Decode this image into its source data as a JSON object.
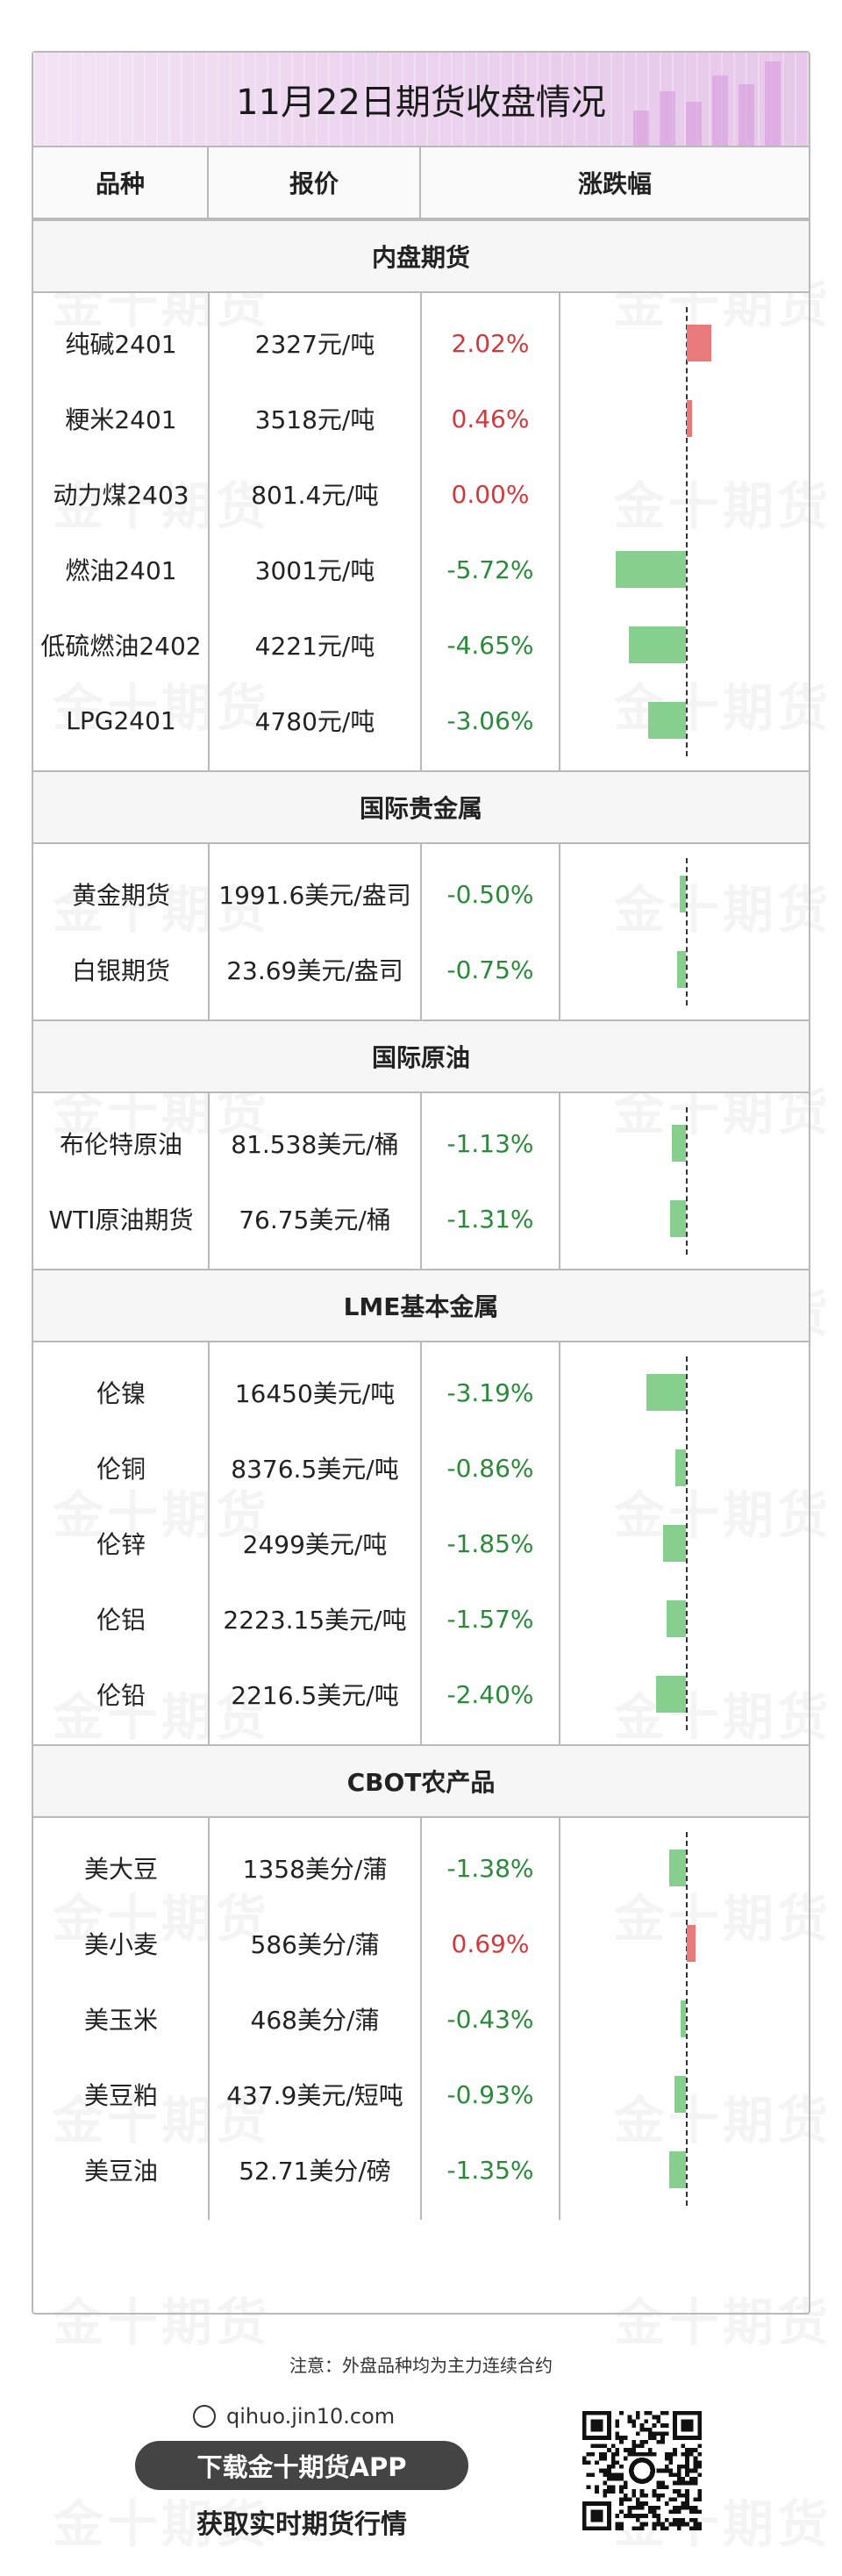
{
  "title": "11月22日期货收盘情况",
  "watermark": "金十期货",
  "header": {
    "col_name": "品种",
    "col_price": "报价",
    "col_change": "涨跌幅"
  },
  "sections": [
    {
      "title": "内盘期货",
      "rows": [
        {
          "name": "纯碱2401",
          "price": "2327元/吨",
          "change": "2.02%",
          "value": 2.02
        },
        {
          "name": "粳米2401",
          "price": "3518元/吨",
          "change": "0.46%",
          "value": 0.46
        },
        {
          "name": "动力煤2403",
          "price": "801.4元/吨",
          "change": "0.00%",
          "value": 0.0
        },
        {
          "name": "燃油2401",
          "price": "3001元/吨",
          "change": "-5.72%",
          "value": -5.72
        },
        {
          "name": "低硫燃油2402",
          "price": "4221元/吨",
          "change": "-4.65%",
          "value": -4.65
        },
        {
          "name": "LPG2401",
          "price": "4780元/吨",
          "change": "-3.06%",
          "value": -3.06
        }
      ]
    },
    {
      "title": "国际贵金属",
      "rows": [
        {
          "name": "黄金期货",
          "price": "1991.6美元/盎司",
          "change": "-0.50%",
          "value": -0.5
        },
        {
          "name": "白银期货",
          "price": "23.69美元/盎司",
          "change": "-0.75%",
          "value": -0.75
        }
      ]
    },
    {
      "title": "国际原油",
      "rows": [
        {
          "name": "布伦特原油",
          "price": "81.538美元/桶",
          "change": "-1.13%",
          "value": -1.13
        },
        {
          "name": "WTI原油期货",
          "price": "76.75美元/桶",
          "change": "-1.31%",
          "value": -1.31
        }
      ]
    },
    {
      "title": "LME基本金属",
      "rows": [
        {
          "name": "伦镍",
          "price": "16450美元/吨",
          "change": "-3.19%",
          "value": -3.19
        },
        {
          "name": "伦铜",
          "price": "8376.5美元/吨",
          "change": "-0.86%",
          "value": -0.86
        },
        {
          "name": "伦锌",
          "price": "2499美元/吨",
          "change": "-1.85%",
          "value": -1.85
        },
        {
          "name": "伦铝",
          "price": "2223.15美元/吨",
          "change": "-1.57%",
          "value": -1.57
        },
        {
          "name": "伦铅",
          "price": "2216.5美元/吨",
          "change": "-2.40%",
          "value": -2.4
        }
      ]
    },
    {
      "title": "CBOT农产品",
      "rows": [
        {
          "name": "美大豆",
          "price": "1358美分/蒲",
          "change": "-1.38%",
          "value": -1.38
        },
        {
          "name": "美小麦",
          "price": "586美分/蒲",
          "change": "0.69%",
          "value": 0.69
        },
        {
          "name": "美玉米",
          "price": "468美分/蒲",
          "change": "-0.43%",
          "value": -0.43
        },
        {
          "name": "美豆粕",
          "price": "437.9美元/短吨",
          "change": "-0.93%",
          "value": -0.93
        },
        {
          "name": "美豆油",
          "price": "52.71美分/磅",
          "change": "-1.35%",
          "value": -1.35
        }
      ]
    }
  ],
  "footer": {
    "note": "注意：外盘品种均为主力连续合约",
    "site": "qihuo.jin10.com",
    "download": "下载金十期货APP",
    "subtitle": "获取实时期货行情"
  },
  "colors": {
    "up": "#d03a3e",
    "down": "#2a8a3a",
    "bar_up": "#e87a7c",
    "bar_down": "#86cf8f"
  }
}
